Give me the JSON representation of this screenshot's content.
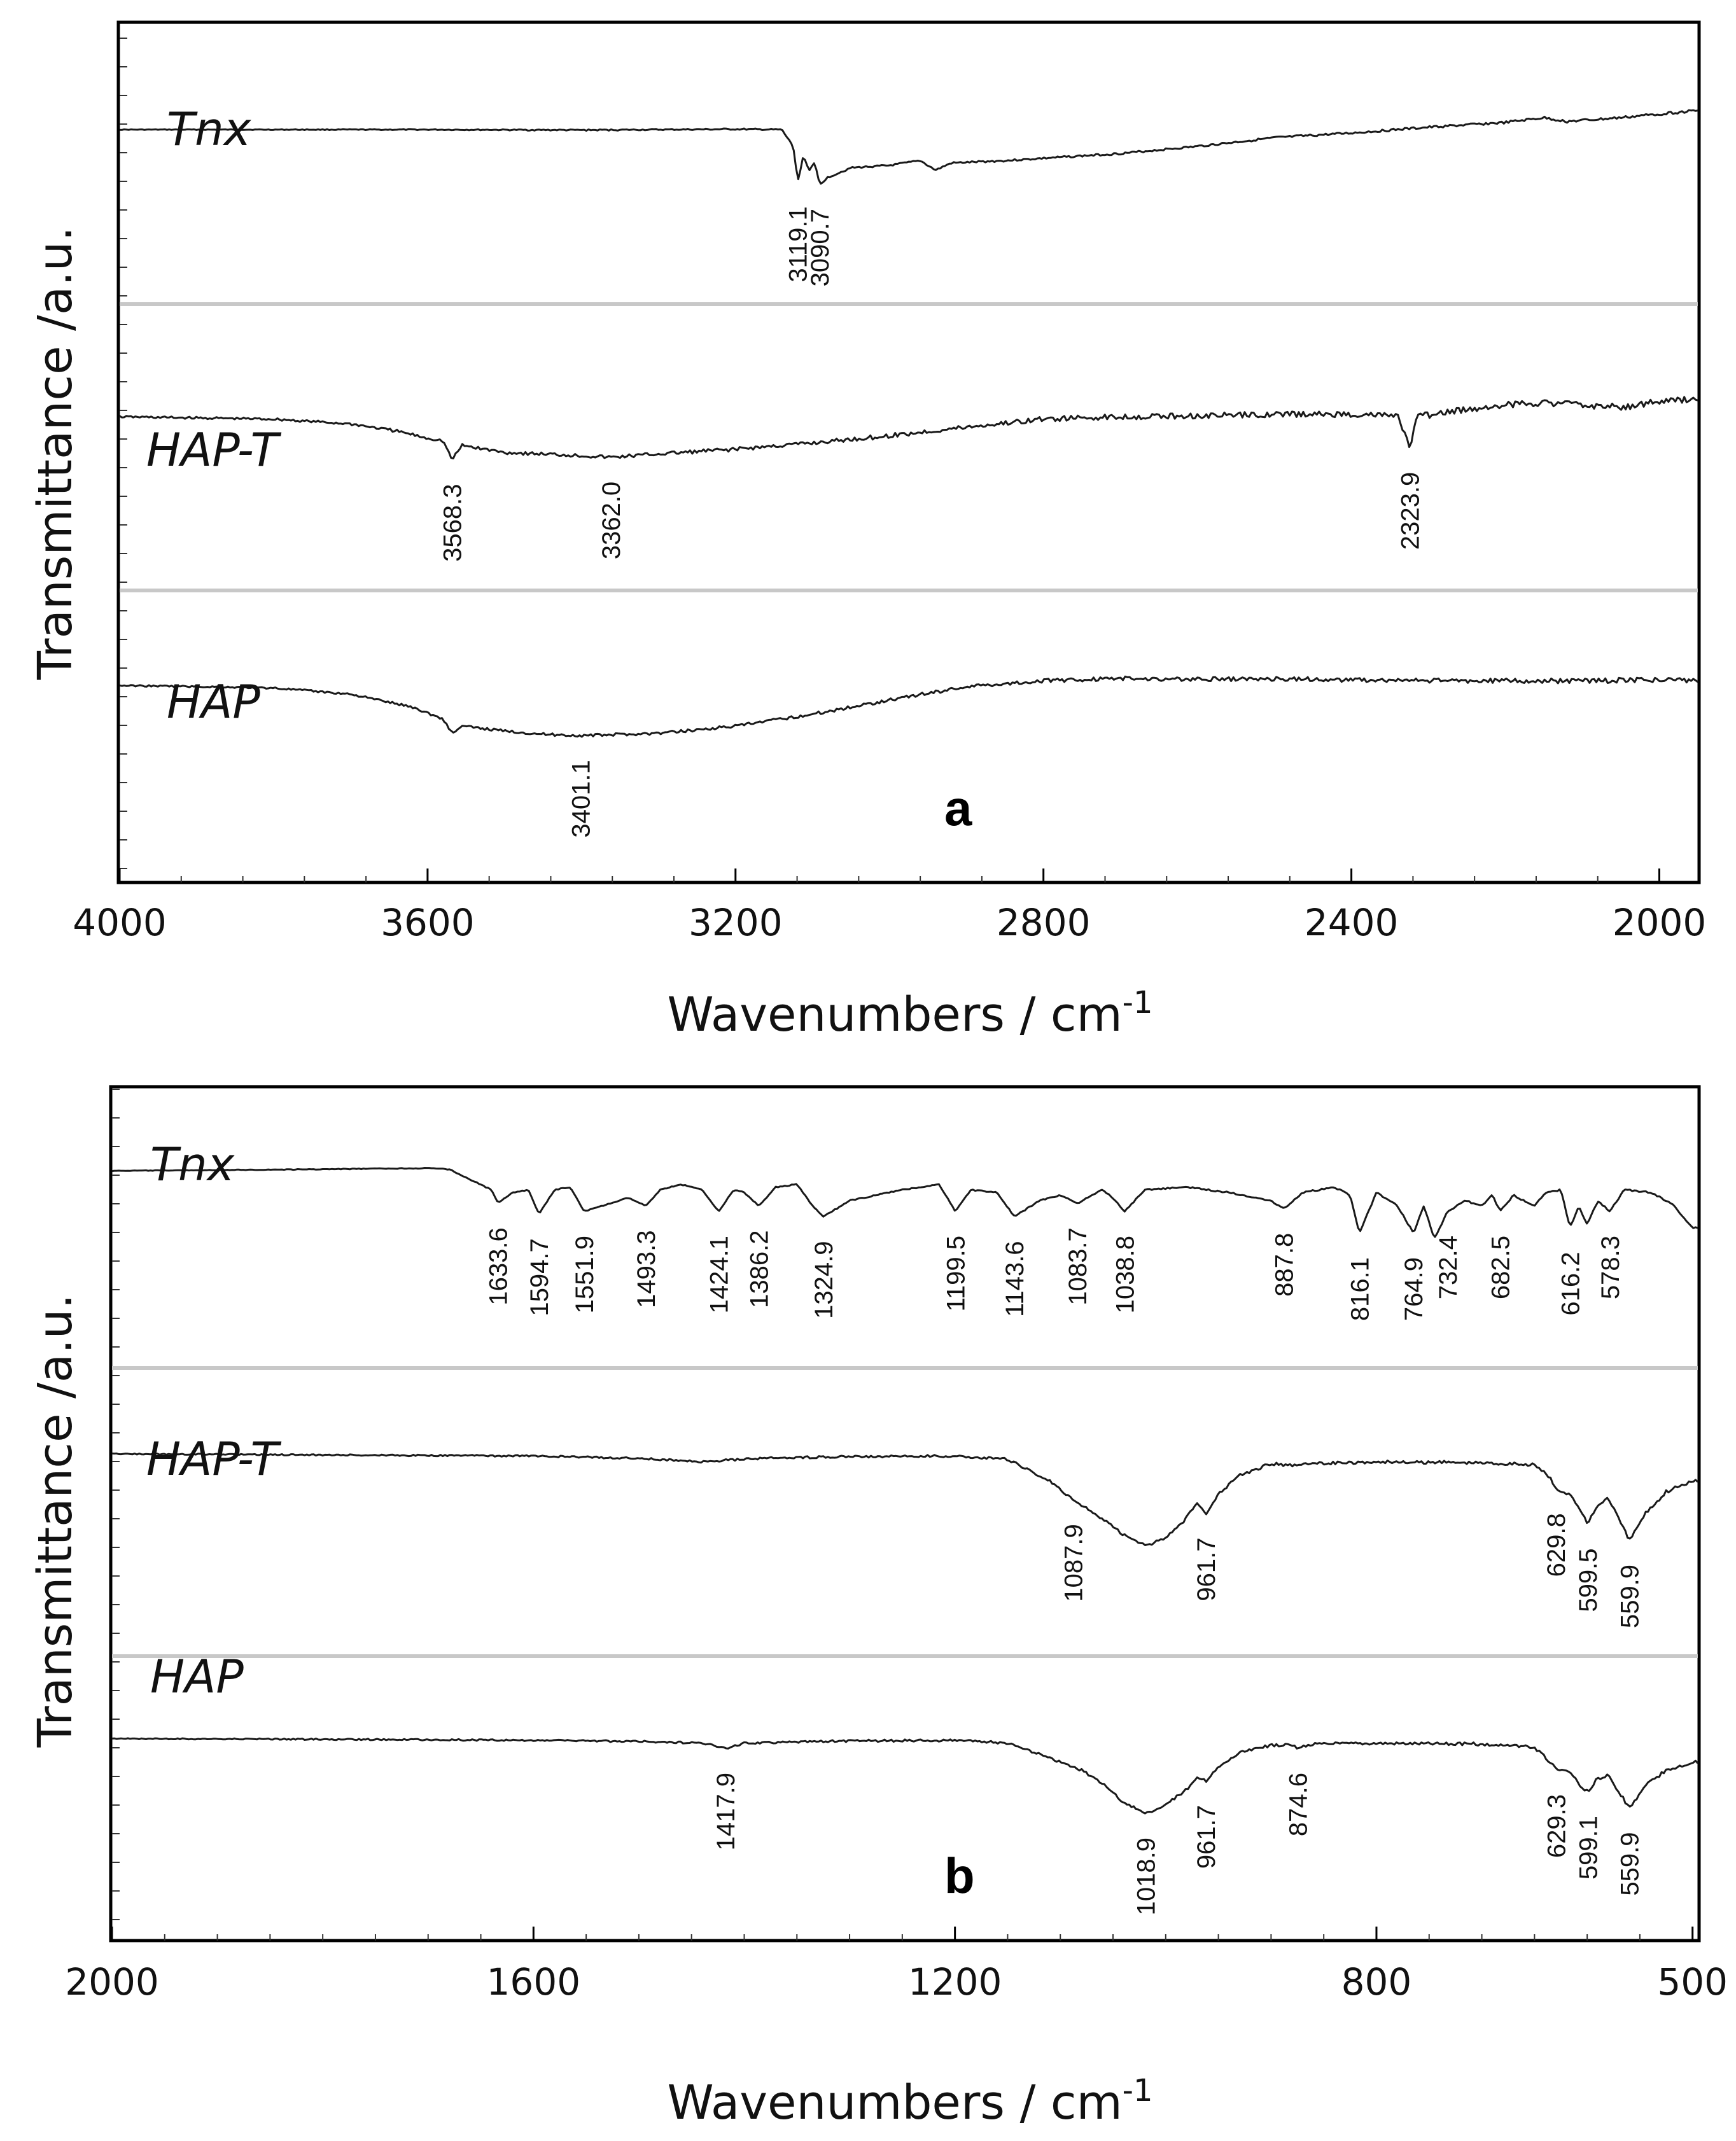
{
  "chart_data": [
    {
      "type": "line",
      "panel": "a",
      "panel_label": "a",
      "xlabel": "Wavenumbers / cm",
      "xlabel_sup": "-1",
      "ylabel": "Transmittance /a.u.",
      "xlim": [
        4000,
        1950
      ],
      "x_ticks": [
        "4000",
        "3600",
        "3200",
        "2800",
        "2400",
        "2000"
      ],
      "x_tick_values": [
        4000,
        3600,
        3200,
        2800,
        2400,
        2000
      ],
      "series": [
        {
          "name": "Tnx",
          "points": [
            [
              4000,
              0.55
            ],
            [
              3800,
              0.55
            ],
            [
              3600,
              0.55
            ],
            [
              3400,
              0.54
            ],
            [
              3200,
              0.56
            ],
            [
              3140,
              0.55
            ],
            [
              3125,
              0.2
            ],
            [
              3119.1,
              -0.55
            ],
            [
              3112,
              0.0
            ],
            [
              3104,
              -0.3
            ],
            [
              3097,
              -0.15
            ],
            [
              3090.7,
              -0.6
            ],
            [
              3080,
              -0.45
            ],
            [
              3050,
              -0.25
            ],
            [
              3000,
              -0.2
            ],
            [
              2960,
              -0.1
            ],
            [
              2940,
              -0.3
            ],
            [
              2920,
              -0.15
            ],
            [
              2850,
              -0.1
            ],
            [
              2800,
              -0.05
            ],
            [
              2700,
              0.05
            ],
            [
              2600,
              0.2
            ],
            [
              2500,
              0.38
            ],
            [
              2400,
              0.48
            ],
            [
              2300,
              0.6
            ],
            [
              2200,
              0.7
            ],
            [
              2150,
              0.8
            ],
            [
              2120,
              0.72
            ],
            [
              2050,
              0.8
            ],
            [
              2000,
              0.88
            ],
            [
              1950,
              0.95
            ]
          ],
          "peaks": [
            3119.1,
            3090.7
          ],
          "peak_labels": [
            "3119.1",
            "3090.7"
          ]
        },
        {
          "name": "HAP-T",
          "points": [
            [
              4000,
              0.6
            ],
            [
              3800,
              0.55
            ],
            [
              3700,
              0.45
            ],
            [
              3640,
              0.3
            ],
            [
              3600,
              0.15
            ],
            [
              3580,
              0.1
            ],
            [
              3568.3,
              -0.3
            ],
            [
              3555,
              0.0
            ],
            [
              3500,
              -0.15
            ],
            [
              3420,
              -0.2
            ],
            [
              3362.0,
              -0.25
            ],
            [
              3300,
              -0.18
            ],
            [
              3200,
              -0.08
            ],
            [
              3100,
              0.05
            ],
            [
              3000,
              0.2
            ],
            [
              2900,
              0.38
            ],
            [
              2800,
              0.55
            ],
            [
              2700,
              0.6
            ],
            [
              2600,
              0.62
            ],
            [
              2500,
              0.65
            ],
            [
              2400,
              0.65
            ],
            [
              2340,
              0.62
            ],
            [
              2323.9,
              -0.05
            ],
            [
              2315,
              0.6
            ],
            [
              2250,
              0.75
            ],
            [
              2200,
              0.85
            ],
            [
              2150,
              0.9
            ],
            [
              2100,
              0.85
            ],
            [
              2050,
              0.8
            ],
            [
              2000,
              0.92
            ],
            [
              1950,
              0.96
            ]
          ],
          "peaks": [
            3568.3,
            3362.0,
            2323.9
          ],
          "peak_labels": [
            "3568.3",
            "3362.0",
            "2323.9"
          ]
        },
        {
          "name": "HAP",
          "points": [
            [
              4000,
              0.9
            ],
            [
              3900,
              0.88
            ],
            [
              3800,
              0.85
            ],
            [
              3700,
              0.72
            ],
            [
              3620,
              0.45
            ],
            [
              3580,
              0.2
            ],
            [
              3568,
              -0.1
            ],
            [
              3555,
              0.05
            ],
            [
              3500,
              -0.05
            ],
            [
              3450,
              -0.12
            ],
            [
              3401.1,
              -0.15
            ],
            [
              3300,
              -0.1
            ],
            [
              3200,
              0.05
            ],
            [
              3100,
              0.3
            ],
            [
              3000,
              0.6
            ],
            [
              2900,
              0.88
            ],
            [
              2800,
              1.0
            ],
            [
              2700,
              1.05
            ],
            [
              2600,
              1.03
            ],
            [
              2500,
              1.04
            ],
            [
              2400,
              1.02
            ],
            [
              2300,
              1.0
            ],
            [
              2200,
              1.0
            ],
            [
              2100,
              1.0
            ],
            [
              2000,
              1.02
            ],
            [
              1950,
              1.0
            ]
          ],
          "peaks": [
            3401.1
          ],
          "peak_labels": [
            "3401.1"
          ]
        }
      ]
    },
    {
      "type": "line",
      "panel": "b",
      "panel_label": "b",
      "xlabel": "Wavenumbers / cm",
      "xlabel_sup": "-1",
      "ylabel": "Transmittance /a.u.",
      "xlim": [
        2000,
        495
      ],
      "x_ticks": [
        "2000",
        "1600",
        "1200",
        "800",
        "500"
      ],
      "x_tick_values": [
        2000,
        1600,
        1200,
        800,
        500
      ],
      "series": [
        {
          "name": "Tnx",
          "points": [
            [
              2000,
              0.95
            ],
            [
              1800,
              0.98
            ],
            [
              1700,
              1.0
            ],
            [
              1680,
              0.98
            ],
            [
              1640,
              0.6
            ],
            [
              1633.6,
              0.35
            ],
            [
              1620,
              0.55
            ],
            [
              1605,
              0.6
            ],
            [
              1594.7,
              0.15
            ],
            [
              1580,
              0.6
            ],
            [
              1565,
              0.65
            ],
            [
              1551.9,
              0.2
            ],
            [
              1535,
              0.3
            ],
            [
              1510,
              0.45
            ],
            [
              1493.3,
              0.3
            ],
            [
              1480,
              0.6
            ],
            [
              1460,
              0.7
            ],
            [
              1440,
              0.6
            ],
            [
              1424.1,
              0.2
            ],
            [
              1410,
              0.6
            ],
            [
              1400,
              0.55
            ],
            [
              1386.2,
              0.3
            ],
            [
              1370,
              0.65
            ],
            [
              1350,
              0.7
            ],
            [
              1335,
              0.3
            ],
            [
              1324.9,
              0.1
            ],
            [
              1300,
              0.4
            ],
            [
              1250,
              0.6
            ],
            [
              1215,
              0.7
            ],
            [
              1199.5,
              0.2
            ],
            [
              1185,
              0.6
            ],
            [
              1160,
              0.55
            ],
            [
              1143.6,
              0.1
            ],
            [
              1120,
              0.4
            ],
            [
              1100,
              0.5
            ],
            [
              1083.7,
              0.35
            ],
            [
              1060,
              0.6
            ],
            [
              1050,
              0.45
            ],
            [
              1038.8,
              0.2
            ],
            [
              1020,
              0.6
            ],
            [
              980,
              0.65
            ],
            [
              940,
              0.55
            ],
            [
              900,
              0.4
            ],
            [
              887.8,
              0.25
            ],
            [
              870,
              0.55
            ],
            [
              840,
              0.65
            ],
            [
              825,
              0.5
            ],
            [
              816.1,
              -0.2
            ],
            [
              800,
              0.55
            ],
            [
              780,
              0.3
            ],
            [
              764.9,
              -0.2
            ],
            [
              755,
              0.3
            ],
            [
              745,
              -0.3
            ],
            [
              732.4,
              0.2
            ],
            [
              715,
              0.4
            ],
            [
              700,
              0.3
            ],
            [
              690,
              0.5
            ],
            [
              682.5,
              0.2
            ],
            [
              670,
              0.5
            ],
            [
              650,
              0.3
            ],
            [
              640,
              0.55
            ],
            [
              625,
              0.6
            ],
            [
              616.2,
              -0.1
            ],
            [
              608,
              0.3
            ],
            [
              600,
              -0.05
            ],
            [
              590,
              0.4
            ],
            [
              578.3,
              0.2
            ],
            [
              565,
              0.6
            ],
            [
              540,
              0.55
            ],
            [
              520,
              0.35
            ],
            [
              500,
              -0.1
            ]
          ],
          "peaks": [
            1633.6,
            1594.7,
            1551.9,
            1493.3,
            1424.1,
            1386.2,
            1324.9,
            1199.5,
            1143.6,
            1083.7,
            1038.8,
            887.8,
            816.1,
            764.9,
            732.4,
            682.5,
            616.2,
            578.3
          ],
          "peak_labels": [
            "1633.6",
            "1594.7",
            "1551.9",
            "1493.3",
            "1424.1",
            "1386.2",
            "1324.9",
            "1199.5",
            "1143.6",
            "1083.7",
            "1038.8",
            "887.8",
            "816.1",
            "764.9",
            "732.4",
            "682.5",
            "616.2",
            "578.3"
          ]
        },
        {
          "name": "HAP-T",
          "points": [
            [
              2000,
              1.0
            ],
            [
              1800,
              0.98
            ],
            [
              1600,
              0.96
            ],
            [
              1500,
              0.92
            ],
            [
              1440,
              0.85
            ],
            [
              1420,
              0.88
            ],
            [
              1380,
              0.92
            ],
            [
              1300,
              0.95
            ],
            [
              1200,
              0.96
            ],
            [
              1150,
              0.9
            ],
            [
              1110,
              0.5
            ],
            [
              1087.9,
              0.15
            ],
            [
              1060,
              -0.2
            ],
            [
              1040,
              -0.5
            ],
            [
              1018,
              -0.7
            ],
            [
              1000,
              -0.55
            ],
            [
              985,
              -0.3
            ],
            [
              970,
              0.1
            ],
            [
              961.7,
              -0.1
            ],
            [
              950,
              0.25
            ],
            [
              930,
              0.6
            ],
            [
              900,
              0.82
            ],
            [
              880,
              0.78
            ],
            [
              870,
              0.82
            ],
            [
              800,
              0.85
            ],
            [
              700,
              0.84
            ],
            [
              650,
              0.8
            ],
            [
              635,
              0.55
            ],
            [
              629.8,
              0.35
            ],
            [
              615,
              0.25
            ],
            [
              605,
              -0.1
            ],
            [
              599.5,
              -0.3
            ],
            [
              590,
              0.05
            ],
            [
              580,
              0.2
            ],
            [
              570,
              -0.2
            ],
            [
              559.9,
              -0.6
            ],
            [
              545,
              -0.1
            ],
            [
              525,
              0.3
            ],
            [
              500,
              0.5
            ]
          ],
          "peaks": [
            1087.9,
            961.7,
            629.8,
            599.5,
            559.9
          ],
          "peak_labels": [
            "1087.9",
            "961.7",
            "629.8",
            "599.5",
            "559.9"
          ]
        },
        {
          "name": "HAP",
          "points": [
            [
              2000,
              0.98
            ],
            [
              1800,
              0.97
            ],
            [
              1600,
              0.95
            ],
            [
              1500,
              0.93
            ],
            [
              1440,
              0.9
            ],
            [
              1417.9,
              0.8
            ],
            [
              1400,
              0.9
            ],
            [
              1300,
              0.94
            ],
            [
              1200,
              0.95
            ],
            [
              1150,
              0.9
            ],
            [
              1100,
              0.55
            ],
            [
              1080,
              0.4
            ],
            [
              1060,
              0.15
            ],
            [
              1040,
              -0.2
            ],
            [
              1018.9,
              -0.4
            ],
            [
              1000,
              -0.25
            ],
            [
              980,
              0.05
            ],
            [
              970,
              0.25
            ],
            [
              961.7,
              0.2
            ],
            [
              950,
              0.45
            ],
            [
              930,
              0.72
            ],
            [
              900,
              0.86
            ],
            [
              880,
              0.86
            ],
            [
              874.6,
              0.8
            ],
            [
              860,
              0.88
            ],
            [
              800,
              0.9
            ],
            [
              700,
              0.88
            ],
            [
              650,
              0.82
            ],
            [
              635,
              0.55
            ],
            [
              629.3,
              0.4
            ],
            [
              615,
              0.35
            ],
            [
              605,
              0.05
            ],
            [
              599.1,
              0.0
            ],
            [
              590,
              0.25
            ],
            [
              580,
              0.3
            ],
            [
              570,
              0.0
            ],
            [
              559.9,
              -0.3
            ],
            [
              545,
              0.1
            ],
            [
              525,
              0.4
            ],
            [
              500,
              0.55
            ]
          ],
          "peaks": [
            1417.9,
            1018.9,
            961.7,
            874.6,
            629.3,
            599.1,
            559.9
          ],
          "peak_labels": [
            "1417.9",
            "1018.9",
            "961.7",
            "874.6",
            "629.3",
            "599.1",
            "559.9"
          ]
        }
      ]
    }
  ]
}
